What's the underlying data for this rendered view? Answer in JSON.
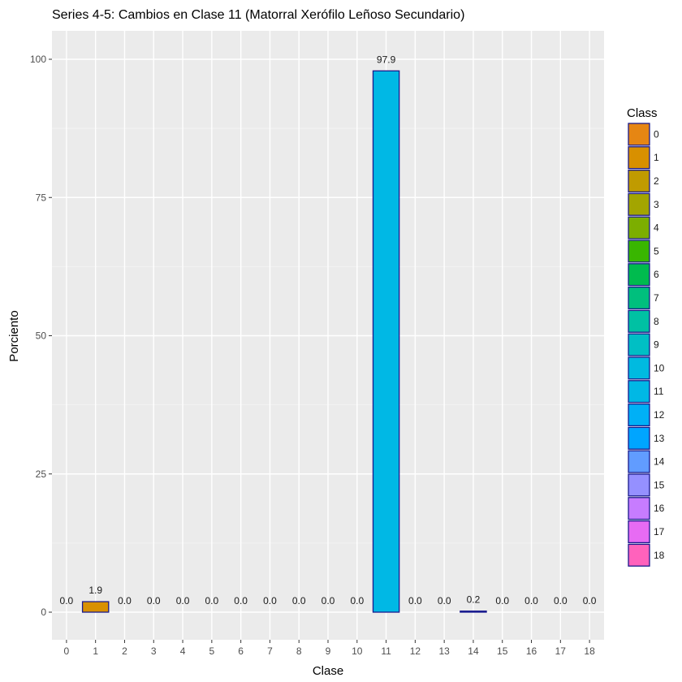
{
  "chart_data": {
    "type": "bar",
    "title": "Series 4-5: Cambios en Clase 11 (Matorral Xerófilo Leñoso Secundario)",
    "xlabel": "Clase",
    "ylabel": "Porciento",
    "ylim": [
      -5,
      104
    ],
    "yticks": [
      0,
      25,
      50,
      75,
      100
    ],
    "grid": true,
    "categories": [
      "0",
      "1",
      "2",
      "3",
      "4",
      "5",
      "6",
      "7",
      "8",
      "9",
      "10",
      "11",
      "12",
      "13",
      "14",
      "15",
      "16",
      "17",
      "18"
    ],
    "values": [
      0.0,
      1.9,
      0.0,
      0.0,
      0.0,
      0.0,
      0.0,
      0.0,
      0.0,
      0.0,
      0.0,
      97.9,
      0.0,
      0.0,
      0.2,
      0.0,
      0.0,
      0.0,
      0.0
    ],
    "data_labels": [
      "0.0",
      "1.9",
      "0.0",
      "0.0",
      "0.0",
      "0.0",
      "0.0",
      "0.0",
      "0.0",
      "0.0",
      "0.0",
      "97.9",
      "0.0",
      "0.0",
      "0.2",
      "0.0",
      "0.0",
      "0.0",
      "0.0"
    ],
    "bar_outline_color": "#1a1a8c",
    "legend": {
      "title": "Class",
      "placement": "right",
      "items": [
        {
          "label": "0",
          "color": "#E68613"
        },
        {
          "label": "1",
          "color": "#D89000"
        },
        {
          "label": "2",
          "color": "#C09B00"
        },
        {
          "label": "3",
          "color": "#A3A500"
        },
        {
          "label": "4",
          "color": "#7CAE00"
        },
        {
          "label": "5",
          "color": "#39B600"
        },
        {
          "label": "6",
          "color": "#00BB4E"
        },
        {
          "label": "7",
          "color": "#00BF7D"
        },
        {
          "label": "8",
          "color": "#00C1A3"
        },
        {
          "label": "9",
          "color": "#00BFC4"
        },
        {
          "label": "10",
          "color": "#00BAE0"
        },
        {
          "label": "11",
          "color": "#00B8E5"
        },
        {
          "label": "12",
          "color": "#00B0F6"
        },
        {
          "label": "13",
          "color": "#00A5FF"
        },
        {
          "label": "14",
          "color": "#619CFF"
        },
        {
          "label": "15",
          "color": "#9590FF"
        },
        {
          "label": "16",
          "color": "#C77CFF"
        },
        {
          "label": "17",
          "color": "#E76BF3"
        },
        {
          "label": "18",
          "color": "#FF62BC"
        }
      ]
    }
  }
}
